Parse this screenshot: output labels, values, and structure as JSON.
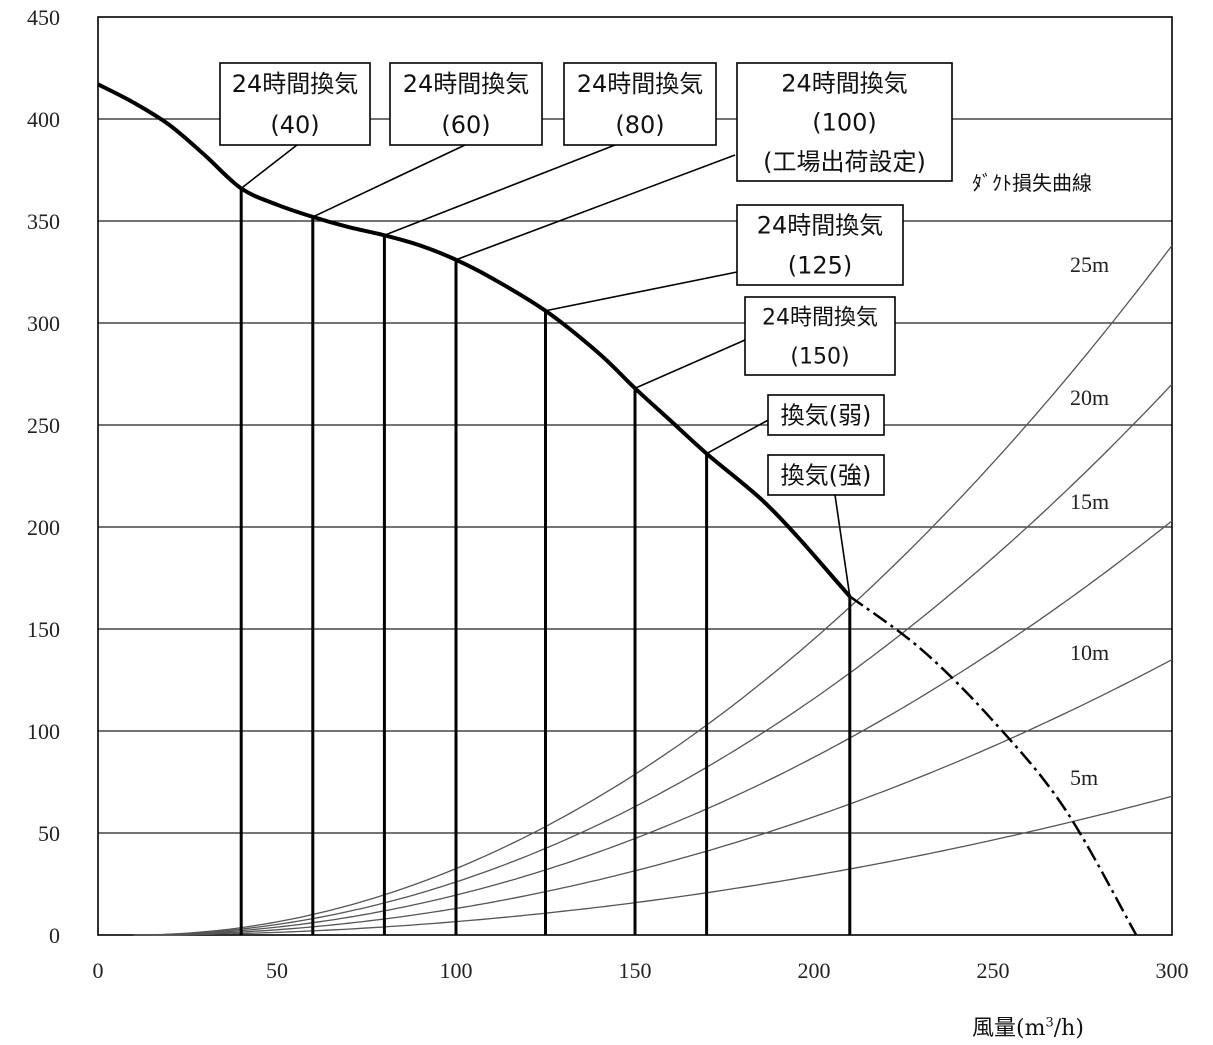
{
  "chart_data": {
    "type": "line",
    "xlim": [
      0,
      300
    ],
    "ylim": [
      0,
      450
    ],
    "x_ticks": [
      0,
      50,
      100,
      150,
      200,
      250,
      300
    ],
    "y_ticks": [
      0,
      50,
      100,
      150,
      200,
      250,
      300,
      350,
      400,
      450
    ],
    "x_axis_label": {
      "main": "風量(m",
      "sup": "3",
      "tail": "/h)"
    },
    "grid": "horizontal",
    "fan_curve": {
      "points": [
        [
          0,
          417
        ],
        [
          10,
          408
        ],
        [
          20,
          397
        ],
        [
          30,
          382
        ],
        [
          40,
          366
        ],
        [
          50,
          358
        ],
        [
          60,
          352
        ],
        [
          70,
          347
        ],
        [
          80,
          343
        ],
        [
          90,
          338
        ],
        [
          100,
          331
        ],
        [
          110,
          322
        ],
        [
          125,
          306
        ],
        [
          140,
          285
        ],
        [
          150,
          268
        ],
        [
          160,
          252
        ],
        [
          170,
          236
        ],
        [
          185,
          214
        ],
        [
          195,
          196
        ],
        [
          205,
          176
        ],
        [
          210,
          166
        ]
      ],
      "extension": [
        [
          210,
          166
        ],
        [
          230,
          140
        ],
        [
          250,
          105
        ],
        [
          270,
          62
        ],
        [
          290,
          0
        ]
      ]
    },
    "settings": [
      {
        "x": 40,
        "y": 366
      },
      {
        "x": 60,
        "y": 352
      },
      {
        "x": 80,
        "y": 343
      },
      {
        "x": 100,
        "y": 331
      },
      {
        "x": 125,
        "y": 306
      },
      {
        "x": 150,
        "y": 268
      },
      {
        "x": 170,
        "y": 236
      },
      {
        "x": 210,
        "y": 166
      }
    ],
    "callouts": [
      {
        "lines": [
          "24時間換気",
          "(40)"
        ],
        "target": [
          40,
          366
        ]
      },
      {
        "lines": [
          "24時間換気",
          "(60)"
        ],
        "target": [
          60,
          352
        ]
      },
      {
        "lines": [
          "24時間換気",
          "(80)"
        ],
        "target": [
          80,
          343
        ]
      },
      {
        "lines": [
          "24時間換気",
          "(100)",
          "(工場出荷設定)"
        ],
        "target": [
          100,
          331
        ]
      },
      {
        "lines": [
          "24時間換気",
          "(125)"
        ],
        "target": [
          125,
          306
        ]
      },
      {
        "lines": [
          "24時間換気",
          "(150)"
        ],
        "target": [
          150,
          268
        ]
      },
      {
        "lines": [
          "換気(弱)"
        ],
        "target": [
          170,
          236
        ]
      },
      {
        "lines": [
          "換気(強)"
        ],
        "target": [
          210,
          166
        ]
      }
    ],
    "duct_loss_title": "ﾀﾞｸﾄ損失曲線",
    "duct_curves": [
      {
        "name": "5m",
        "y_at_300": 68
      },
      {
        "name": "10m",
        "y_at_300": 135
      },
      {
        "name": "15m",
        "y_at_300": 203
      },
      {
        "name": "20m",
        "y_at_300": 270
      },
      {
        "name": "25m",
        "y_at_300": 338
      }
    ]
  }
}
